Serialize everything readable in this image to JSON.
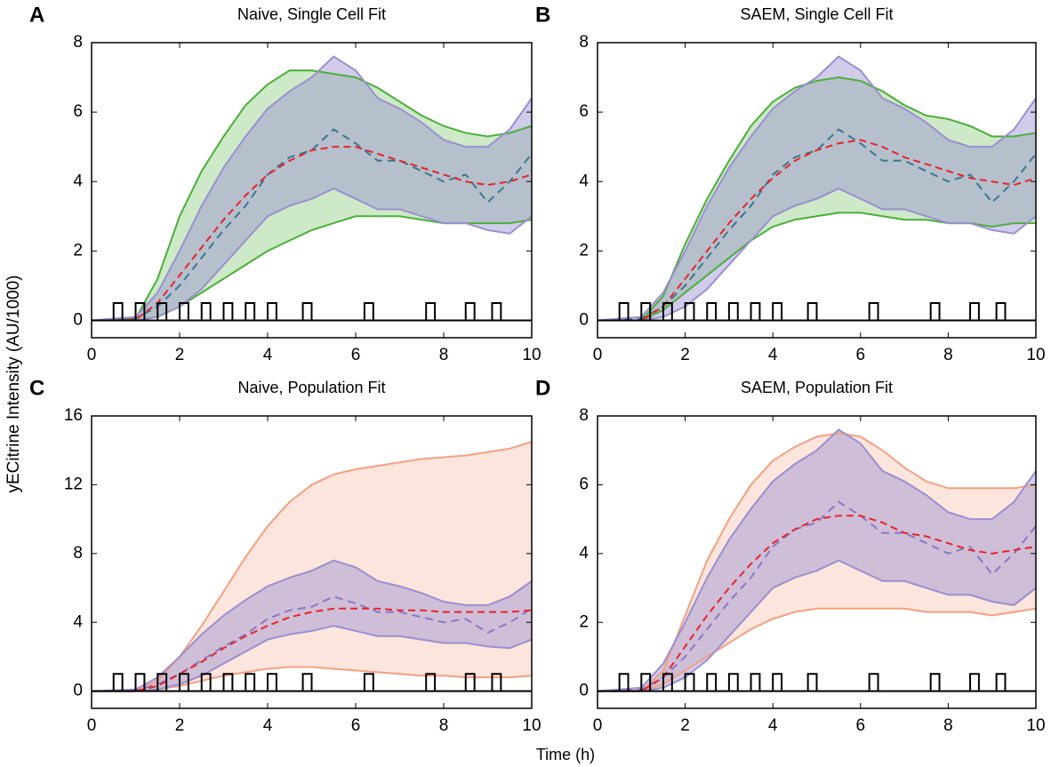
{
  "ylabel": "yECitrine Intensity (AU/1000)",
  "xlabel": "Time (h)",
  "chart_data": [
    {
      "type": "line",
      "panel": "A",
      "title": "Naive, Single Cell Fit",
      "x": [
        0,
        0.5,
        1,
        1.5,
        2,
        2.5,
        3,
        3.5,
        4,
        4.5,
        5,
        5.5,
        6,
        6.5,
        7,
        7.5,
        8,
        8.5,
        9,
        9.5,
        10
      ],
      "xlim": [
        0,
        10
      ],
      "xticks": [
        0,
        2,
        4,
        6,
        8,
        10
      ],
      "ylim": [
        -0.5,
        8
      ],
      "yticks": [
        0,
        2,
        4,
        6,
        8
      ],
      "model_band": {
        "color": "#4caf3a",
        "upper": [
          0,
          0,
          0.05,
          1.2,
          3.0,
          4.3,
          5.3,
          6.2,
          6.8,
          7.2,
          7.2,
          7.1,
          7.0,
          6.7,
          6.3,
          5.9,
          5.6,
          5.4,
          5.3,
          5.4,
          5.6
        ],
        "lower": [
          0,
          0,
          0,
          0.1,
          0.4,
          0.8,
          1.2,
          1.6,
          2.0,
          2.3,
          2.6,
          2.8,
          3.0,
          3.0,
          3.0,
          2.9,
          2.8,
          2.8,
          2.8,
          2.8,
          2.9
        ]
      },
      "data_band": {
        "color": "#9a8fd0",
        "upper": [
          0,
          0.05,
          0.1,
          0.8,
          2.0,
          3.3,
          4.4,
          5.3,
          6.1,
          6.6,
          7.0,
          7.6,
          7.2,
          6.4,
          6.1,
          5.7,
          5.2,
          5.0,
          5.0,
          5.5,
          6.4
        ],
        "lower": [
          0,
          0,
          0,
          0.1,
          0.4,
          0.9,
          1.6,
          2.3,
          3.0,
          3.3,
          3.5,
          3.8,
          3.5,
          3.2,
          3.2,
          3.0,
          2.8,
          2.8,
          2.6,
          2.5,
          3.0
        ]
      },
      "data_mean": {
        "color": "#3a7890",
        "values": [
          0,
          0,
          0.05,
          0.4,
          1.0,
          1.8,
          2.6,
          3.3,
          4.2,
          4.7,
          4.9,
          5.5,
          5.1,
          4.6,
          4.6,
          4.3,
          4.0,
          4.2,
          3.4,
          4.0,
          4.8
        ]
      },
      "model_mean": {
        "color": "#e8232a",
        "values": [
          0,
          0,
          0.02,
          0.5,
          1.3,
          2.1,
          2.9,
          3.6,
          4.2,
          4.6,
          4.9,
          5.0,
          5.0,
          4.8,
          4.6,
          4.4,
          4.2,
          4.0,
          3.9,
          4.0,
          4.2
        ]
      },
      "pulse_starts": [
        0.5,
        1.0,
        1.5,
        2.0,
        2.5,
        3.0,
        3.5,
        4.0,
        4.8,
        6.2,
        7.6,
        8.5,
        9.1
      ],
      "pulse_width": 0.2,
      "pulse_height": 0.5
    },
    {
      "type": "line",
      "panel": "B",
      "title": "SAEM, Single Cell Fit",
      "x": [
        0,
        0.5,
        1,
        1.5,
        2,
        2.5,
        3,
        3.5,
        4,
        4.5,
        5,
        5.5,
        6,
        6.5,
        7,
        7.5,
        8,
        8.5,
        9,
        9.5,
        10
      ],
      "xlim": [
        0,
        10
      ],
      "xticks": [
        0,
        2,
        4,
        6,
        8,
        10
      ],
      "ylim": [
        -0.5,
        8
      ],
      "yticks": [
        0,
        2,
        4,
        6,
        8
      ],
      "model_band": {
        "color": "#4caf3a",
        "upper": [
          0,
          0,
          0,
          0.7,
          2.2,
          3.5,
          4.6,
          5.6,
          6.3,
          6.7,
          6.9,
          7.0,
          6.9,
          6.6,
          6.2,
          5.9,
          5.8,
          5.6,
          5.3,
          5.3,
          5.4
        ],
        "lower": [
          0,
          0,
          0,
          0.3,
          0.8,
          1.3,
          1.8,
          2.3,
          2.7,
          2.9,
          3.0,
          3.1,
          3.1,
          3.0,
          2.9,
          2.9,
          2.8,
          2.8,
          2.7,
          2.8,
          2.8
        ]
      },
      "data_band": {
        "color": "#9a8fd0",
        "upper": [
          0,
          0.05,
          0.1,
          0.8,
          2.0,
          3.3,
          4.4,
          5.3,
          6.1,
          6.6,
          7.0,
          7.6,
          7.2,
          6.4,
          6.1,
          5.7,
          5.2,
          5.0,
          5.0,
          5.5,
          6.4
        ],
        "lower": [
          0,
          0,
          0,
          0.1,
          0.4,
          0.9,
          1.6,
          2.3,
          3.0,
          3.3,
          3.5,
          3.8,
          3.5,
          3.2,
          3.2,
          3.0,
          2.8,
          2.8,
          2.6,
          2.5,
          3.0
        ]
      },
      "data_mean": {
        "color": "#3a7890",
        "values": [
          0,
          0,
          0.05,
          0.4,
          1.0,
          1.8,
          2.6,
          3.3,
          4.2,
          4.7,
          4.9,
          5.5,
          5.1,
          4.6,
          4.6,
          4.3,
          4.0,
          4.2,
          3.4,
          4.0,
          4.8
        ]
      },
      "model_mean": {
        "color": "#e8232a",
        "values": [
          0,
          0,
          0,
          0.4,
          1.2,
          2.0,
          2.8,
          3.5,
          4.1,
          4.6,
          4.9,
          5.1,
          5.2,
          5.0,
          4.7,
          4.5,
          4.3,
          4.1,
          4.0,
          3.9,
          4.1
        ]
      },
      "pulse_starts": [
        0.5,
        1.0,
        1.5,
        2.0,
        2.5,
        3.0,
        3.5,
        4.0,
        4.8,
        6.2,
        7.6,
        8.5,
        9.1
      ],
      "pulse_width": 0.2,
      "pulse_height": 0.5
    },
    {
      "type": "line",
      "panel": "C",
      "title": "Naive, Population Fit",
      "x": [
        0,
        0.5,
        1,
        1.5,
        2,
        2.5,
        3,
        3.5,
        4,
        4.5,
        5,
        5.5,
        6,
        6.5,
        7,
        7.5,
        8,
        8.5,
        9,
        9.5,
        10
      ],
      "xlim": [
        0,
        10
      ],
      "xticks": [
        0,
        2,
        4,
        6,
        8,
        10
      ],
      "ylim": [
        -1,
        16
      ],
      "yticks": [
        0,
        4,
        8,
        12,
        16
      ],
      "model_band": {
        "color": "#f4a082",
        "upper": [
          0,
          0,
          0,
          0.6,
          2.0,
          3.8,
          5.8,
          7.8,
          9.6,
          11.0,
          12.0,
          12.6,
          12.9,
          13.1,
          13.3,
          13.5,
          13.6,
          13.7,
          13.9,
          14.1,
          14.5
        ],
        "lower": [
          0,
          0,
          0,
          0.1,
          0.3,
          0.6,
          0.9,
          1.1,
          1.3,
          1.4,
          1.4,
          1.3,
          1.2,
          1.1,
          1.0,
          0.9,
          0.9,
          0.8,
          0.8,
          0.8,
          0.9
        ]
      },
      "data_band": {
        "color": "#9a8fd0",
        "upper": [
          0,
          0.05,
          0.1,
          0.8,
          2.0,
          3.3,
          4.4,
          5.3,
          6.1,
          6.6,
          7.0,
          7.6,
          7.2,
          6.4,
          6.1,
          5.7,
          5.2,
          5.0,
          5.0,
          5.5,
          6.4
        ],
        "lower": [
          0,
          0,
          0,
          0.1,
          0.4,
          0.9,
          1.6,
          2.3,
          3.0,
          3.3,
          3.5,
          3.8,
          3.5,
          3.2,
          3.2,
          3.0,
          2.8,
          2.8,
          2.6,
          2.5,
          3.0
        ]
      },
      "data_mean": {
        "color": "#8878c4",
        "values": [
          0,
          0,
          0.05,
          0.4,
          1.0,
          1.8,
          2.6,
          3.3,
          4.2,
          4.7,
          4.9,
          5.5,
          5.1,
          4.6,
          4.6,
          4.3,
          4.0,
          4.2,
          3.4,
          4.0,
          4.8
        ]
      },
      "model_mean": {
        "color": "#e8232a",
        "values": [
          0,
          0,
          0,
          0.3,
          1.0,
          1.7,
          2.5,
          3.2,
          3.8,
          4.3,
          4.6,
          4.8,
          4.8,
          4.8,
          4.7,
          4.7,
          4.6,
          4.6,
          4.6,
          4.6,
          4.7
        ]
      },
      "pulse_starts": [
        0.5,
        1.0,
        1.5,
        2.0,
        2.5,
        3.0,
        3.5,
        4.0,
        4.8,
        6.2,
        7.6,
        8.5,
        9.1
      ],
      "pulse_width": 0.2,
      "pulse_height": 1
    },
    {
      "type": "line",
      "panel": "D",
      "title": "SAEM, Population Fit",
      "x": [
        0,
        0.5,
        1,
        1.5,
        2,
        2.5,
        3,
        3.5,
        4,
        4.5,
        5,
        5.5,
        6,
        6.5,
        7,
        7.5,
        8,
        8.5,
        9,
        9.5,
        10
      ],
      "xlim": [
        0,
        10
      ],
      "xticks": [
        0,
        2,
        4,
        6,
        8,
        10
      ],
      "ylim": [
        -0.5,
        8
      ],
      "yticks": [
        0,
        2,
        4,
        6,
        8
      ],
      "model_band": {
        "color": "#f4a082",
        "upper": [
          0,
          0,
          0,
          0.6,
          2.2,
          3.8,
          5.0,
          6.0,
          6.7,
          7.1,
          7.4,
          7.5,
          7.4,
          7.0,
          6.5,
          6.1,
          5.9,
          5.9,
          5.9,
          5.9,
          6.0
        ],
        "lower": [
          0,
          0,
          0,
          0.2,
          0.6,
          1.0,
          1.4,
          1.8,
          2.1,
          2.3,
          2.4,
          2.4,
          2.4,
          2.4,
          2.4,
          2.3,
          2.3,
          2.3,
          2.2,
          2.3,
          2.4
        ]
      },
      "data_band": {
        "color": "#9a8fd0",
        "upper": [
          0,
          0.05,
          0.1,
          0.8,
          2.0,
          3.3,
          4.4,
          5.3,
          6.1,
          6.6,
          7.0,
          7.6,
          7.2,
          6.4,
          6.1,
          5.7,
          5.2,
          5.0,
          5.0,
          5.5,
          6.4
        ],
        "lower": [
          0,
          0,
          0,
          0.1,
          0.4,
          0.9,
          1.6,
          2.3,
          3.0,
          3.3,
          3.5,
          3.8,
          3.5,
          3.2,
          3.2,
          3.0,
          2.8,
          2.8,
          2.6,
          2.5,
          3.0
        ]
      },
      "data_mean": {
        "color": "#8878c4",
        "values": [
          0,
          0,
          0.05,
          0.4,
          1.0,
          1.8,
          2.6,
          3.3,
          4.2,
          4.7,
          4.9,
          5.5,
          5.1,
          4.6,
          4.6,
          4.3,
          4.0,
          4.2,
          3.4,
          4.0,
          4.8
        ]
      },
      "model_mean": {
        "color": "#e8232a",
        "values": [
          0,
          0,
          0,
          0.4,
          1.3,
          2.2,
          3.0,
          3.7,
          4.3,
          4.7,
          5.0,
          5.1,
          5.1,
          4.9,
          4.6,
          4.5,
          4.3,
          4.1,
          4.0,
          4.1,
          4.2
        ]
      },
      "pulse_starts": [
        0.5,
        1.0,
        1.5,
        2.0,
        2.5,
        3.0,
        3.5,
        4.0,
        4.8,
        6.2,
        7.6,
        8.5,
        9.1
      ],
      "pulse_width": 0.2,
      "pulse_height": 0.5
    }
  ]
}
